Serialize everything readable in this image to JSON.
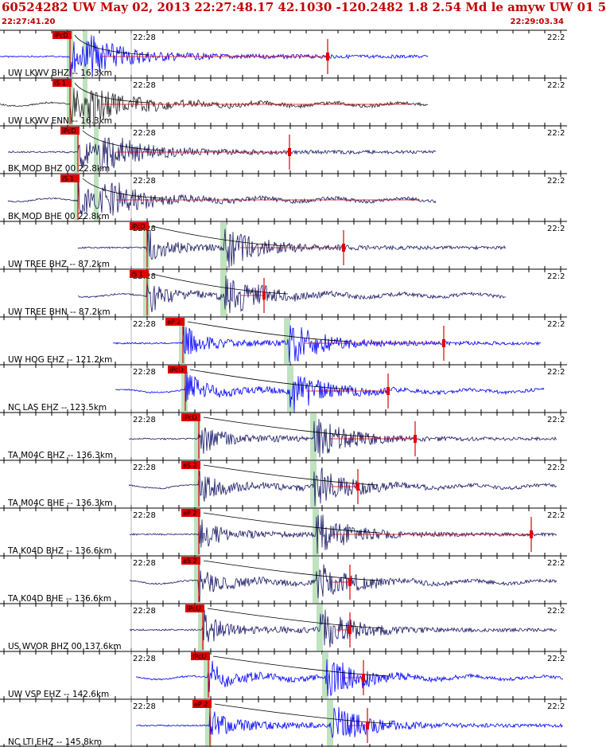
{
  "header": {
    "title": "60524282 UW May 02, 2013 22:27:48.17   42.1030 -120.2482  1.8 2.54 Md le amyw UW 01   5",
    "start_time": "22:27:41.20",
    "end_time": "22:29:03.34"
  },
  "colors": {
    "pick": "#e00000",
    "window": "#bfe3bf",
    "grid": "#000000",
    "trace_navy": "#1a1a66",
    "trace_blue": "#0000ff",
    "trace_black": "#222222",
    "trace_red": "#d00000"
  },
  "tick_label": "22:28",
  "tick_label_right": "22:2",
  "traces": [
    {
      "label": "UW LKWV BHZ -- 16.3km",
      "pick": "iPcD",
      "color": "blue"
    },
    {
      "label": "UW LKWV ENN -- 16.3km",
      "pick": "iS 1",
      "color": "black"
    },
    {
      "label": "BK MOD BHZ 00 22.8km",
      "pick": "iPcD",
      "color": "navy"
    },
    {
      "label": "BK MOD BHE 00 22.8km",
      "pick": "iS 1",
      "color": "navy"
    },
    {
      "label": "UW TREE BHZ -- 87.2km",
      "pick": "iPcD",
      "color": "navy"
    },
    {
      "label": "UW TREE BHN -- 87.2km",
      "pick": "iS 1",
      "color": "navy"
    },
    {
      "label": "UW HOG EHZ -- 121.2km",
      "pick": "eP 2",
      "color": "blue"
    },
    {
      "label": "NC LAS EHZ -- 123.5km",
      "pick": "iPcD",
      "color": "blue"
    },
    {
      "label": "TA M04C BHZ -- 136.3km",
      "pick": "iPcD",
      "color": "navy"
    },
    {
      "label": "TA M04C BHE -- 136.3km",
      "pick": "eS 2",
      "color": "navy"
    },
    {
      "label": "TA K04D BHZ -- 136.6km",
      "pick": "eP 2",
      "color": "navy"
    },
    {
      "label": "TA K04D BHE -- 136.6km",
      "pick": "eS 2",
      "color": "navy"
    },
    {
      "label": "US WVOR BHZ 00 137.6km",
      "pick": "iPcU",
      "color": "navy"
    },
    {
      "label": "UW VSP EHZ -- 142.6km",
      "pick": "iPcU",
      "color": "blue"
    },
    {
      "label": "NC LTI EHZ -- 145.8km",
      "pick": "eP 2",
      "color": "blue"
    }
  ]
}
